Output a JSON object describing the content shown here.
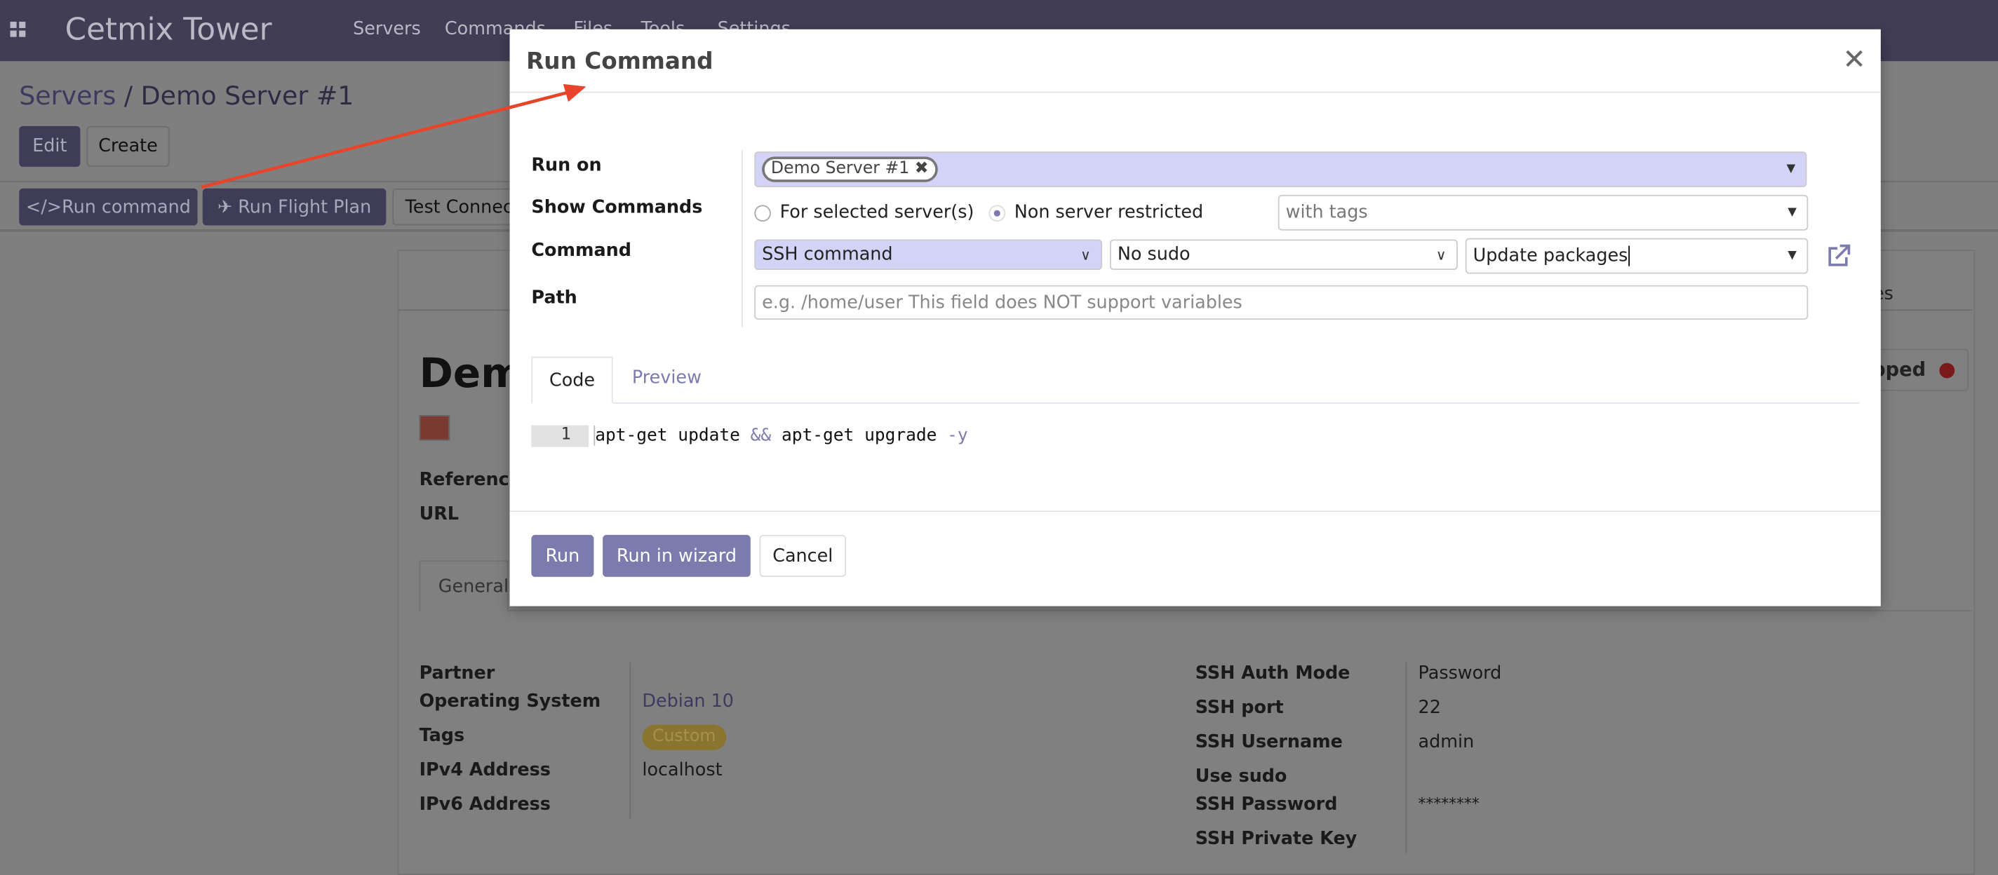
{
  "navbar": {
    "app_title": "Cetmix Tower",
    "menu": [
      "Servers",
      "Commands",
      "Files",
      "Tools",
      "Settings"
    ],
    "apps_icon": "grid-icon"
  },
  "breadcrumb": {
    "parent": "Servers",
    "separator": "/",
    "current": "Demo Server #1"
  },
  "control": {
    "edit": "Edit",
    "create": "Create"
  },
  "actions": {
    "run_command": "Run command",
    "run_command_icon": "code-icon",
    "run_flight_plan": "Run Flight Plan",
    "run_flight_plan_icon": "plane-icon",
    "test_connection": "Test Connec"
  },
  "sheet": {
    "title": "Demo",
    "status": "pped",
    "status_color": "#8b1a1a",
    "tab_partial": "es",
    "color_swatch": "#7a3a30",
    "reference_label": "Reference",
    "url_label": "URL",
    "tab_general": "General",
    "left_fields": [
      {
        "label": "Partner",
        "value": ""
      },
      {
        "label": "Operating System",
        "value": "Debian 10"
      },
      {
        "label": "Tags",
        "value": "Custom"
      },
      {
        "label": "IPv4 Address",
        "value": "localhost"
      },
      {
        "label": "IPv6 Address",
        "value": ""
      }
    ],
    "right_fields": [
      {
        "label": "SSH Auth Mode",
        "value": "Password"
      },
      {
        "label": "SSH port",
        "value": "22"
      },
      {
        "label": "SSH Username",
        "value": "admin"
      },
      {
        "label": "Use sudo",
        "value": ""
      },
      {
        "label": "SSH Password",
        "value": "********"
      },
      {
        "label": "SSH Private Key",
        "value": ""
      }
    ]
  },
  "modal": {
    "title": "Run Command",
    "close_icon": "close-icon",
    "labels": {
      "run_on": "Run on",
      "show_commands": "Show Commands",
      "command": "Command",
      "path": "Path"
    },
    "run_on_tag": "Demo Server #1",
    "radio": {
      "option1": "For selected server(s)",
      "option2": "Non server restricted",
      "selected": "Non server restricted"
    },
    "tags_placeholder": "with tags",
    "command_type": "SSH command",
    "sudo": "No sudo",
    "command": "Update packages",
    "path_placeholder": "e.g. /home/user This field does NOT support variables",
    "tabs": [
      "Code",
      "Preview"
    ],
    "active_tab": "Code",
    "code": {
      "line_number": "1",
      "p1": "apt-get update ",
      "op": "&&",
      "p2": " apt-get upgrade ",
      "flag": "-y"
    },
    "buttons": {
      "run": "Run",
      "run_wizard": "Run in wizard",
      "cancel": "Cancel"
    }
  },
  "colors": {
    "navbar": "#403d55",
    "accent": "#7c7bad",
    "lavender_field": "#d3d3f8",
    "annotation_arrow": "#e8442a"
  }
}
